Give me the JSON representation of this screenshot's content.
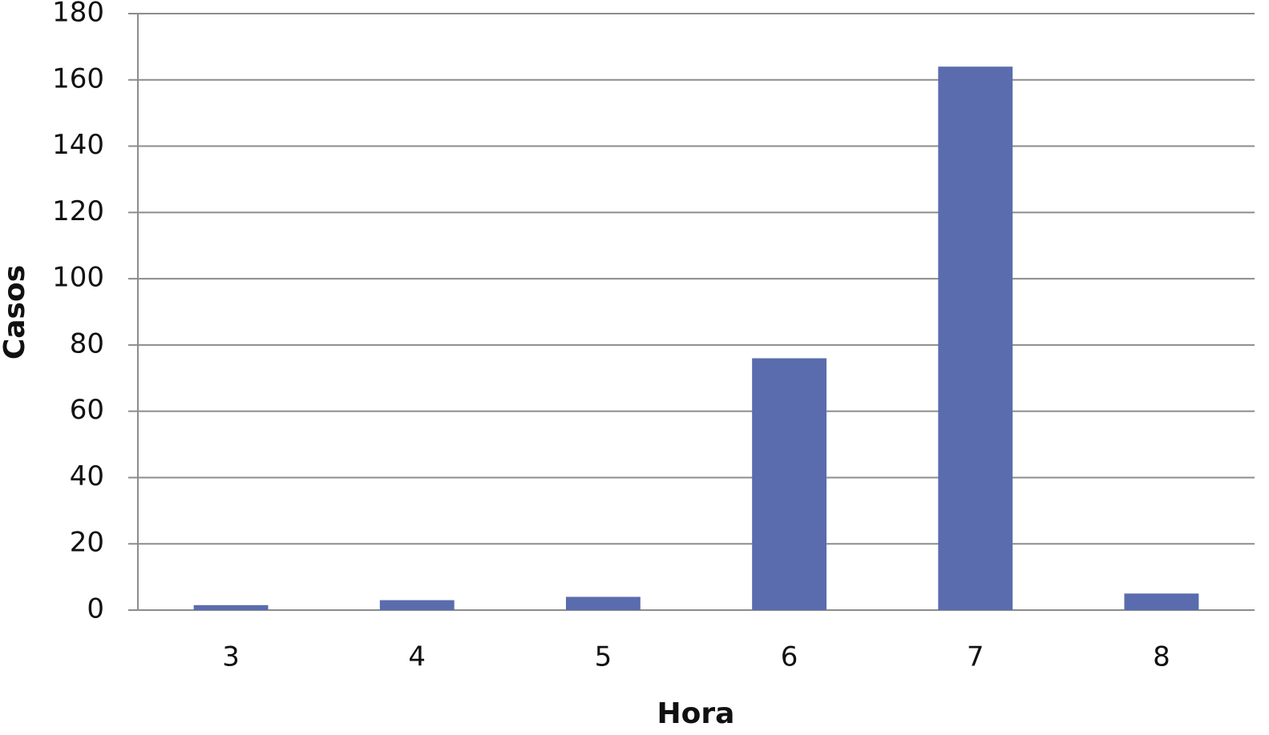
{
  "chart_data": {
    "type": "bar",
    "x_label": "Hora",
    "y_label": "Casos",
    "categories": [
      "3",
      "4",
      "5",
      "6",
      "7",
      "8"
    ],
    "values": [
      1.5,
      3,
      4,
      76,
      164,
      5
    ],
    "color": "#5a6cad",
    "ylim": [
      0,
      180
    ],
    "yticks": [
      0,
      20,
      40,
      60,
      80,
      100,
      120,
      140,
      160,
      180
    ],
    "grid": true
  }
}
